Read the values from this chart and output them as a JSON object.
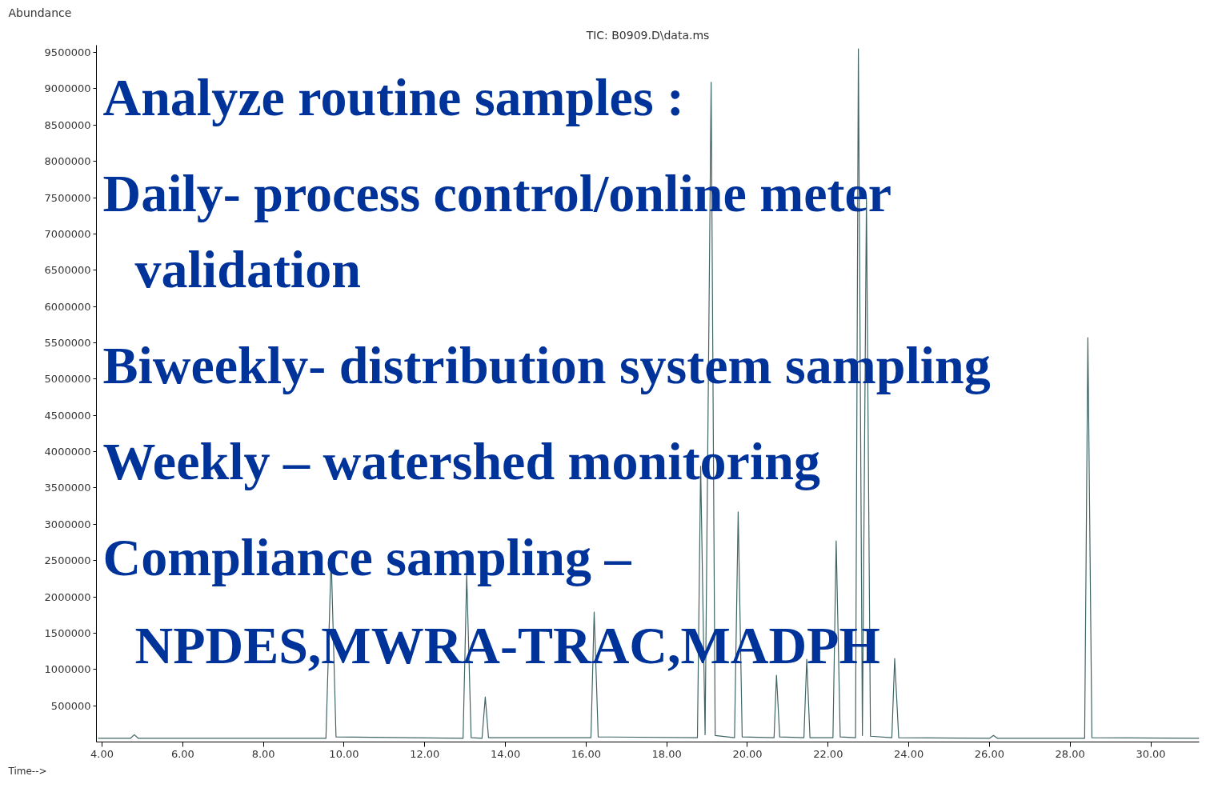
{
  "chart_data": {
    "type": "line",
    "title": "TIC: B0909.D\\data.ms",
    "xlabel": "Time-->",
    "ylabel": "Abundance",
    "x": [
      3.9,
      4.7,
      4.8,
      4.9,
      9.55,
      9.68,
      9.8,
      12.95,
      13.04,
      13.15,
      13.42,
      13.5,
      13.58,
      16.12,
      16.2,
      16.3,
      18.76,
      18.84,
      18.95,
      19.1,
      19.2,
      19.68,
      19.77,
      19.87,
      20.66,
      20.72,
      20.8,
      21.4,
      21.47,
      21.55,
      22.12,
      22.2,
      22.3,
      22.68,
      22.75,
      22.85,
      22.95,
      23.05,
      23.58,
      23.65,
      23.75,
      26.0,
      26.1,
      26.2,
      28.36,
      28.44,
      28.54,
      31.2
    ],
    "series": [
      {
        "color": "#3f6464",
        "values": [
          50000,
          50000,
          100000,
          50000,
          50000,
          2550000,
          70000,
          50000,
          2300000,
          60000,
          50000,
          620000,
          60000,
          60000,
          1790000,
          70000,
          60000,
          3800000,
          100000,
          9090000,
          90000,
          60000,
          3170000,
          70000,
          60000,
          920000,
          70000,
          60000,
          1140000,
          60000,
          60000,
          2770000,
          70000,
          60000,
          9550000,
          90000,
          7490000,
          80000,
          60000,
          1150000,
          60000,
          50000,
          90000,
          50000,
          50000,
          5570000,
          60000,
          50000
        ]
      }
    ],
    "xlim": [
      3.86,
      31.2
    ],
    "ylim": [
      0,
      9600000
    ],
    "xticks": [
      {
        "value": 4,
        "label": "4.00"
      },
      {
        "value": 6,
        "label": "6.00"
      },
      {
        "value": 8,
        "label": "8.00"
      },
      {
        "value": 10,
        "label": "10.00"
      },
      {
        "value": 12,
        "label": "12.00"
      },
      {
        "value": 14,
        "label": "14.00"
      },
      {
        "value": 16,
        "label": "16.00"
      },
      {
        "value": 18,
        "label": "18.00"
      },
      {
        "value": 20,
        "label": "20.00"
      },
      {
        "value": 22,
        "label": "22.00"
      },
      {
        "value": 24,
        "label": "24.00"
      },
      {
        "value": 26,
        "label": "26.00"
      },
      {
        "value": 28,
        "label": "28.00"
      },
      {
        "value": 30,
        "label": "30.00"
      }
    ],
    "yticks": [
      500000,
      1000000,
      1500000,
      2000000,
      2500000,
      3000000,
      3500000,
      4000000,
      4500000,
      5000000,
      5500000,
      6000000,
      6500000,
      7000000,
      7500000,
      8000000,
      8500000,
      9000000,
      9500000
    ],
    "grid": false,
    "marker": "none",
    "line_style": "solid",
    "annotations": [
      "Analyze routine samples :",
      "Daily- process control/online meter",
      "validation",
      "Biweekly- distribution system   sampling",
      "Weekly – watershed monitoring",
      "Compliance sampling –",
      "NPDES,MWRA-TRAC,MADPH"
    ]
  }
}
